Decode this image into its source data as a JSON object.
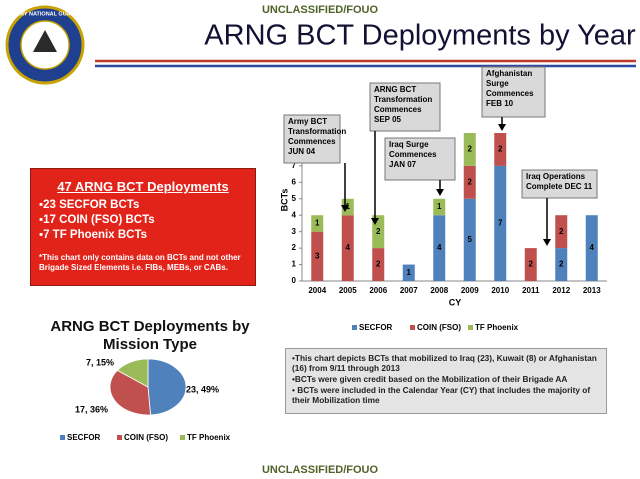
{
  "header": {
    "classification": "UNCLASSIFIED/FOUO",
    "title": "ARNG BCT Deployments by Year",
    "logo_text": "ARMY NATIONAL GUARD"
  },
  "summary": {
    "heading": "47 ARNG BCT Deployments",
    "items": [
      "▪23 SECFOR BCTs",
      "▪17 COIN (FSO) BCTs",
      "▪7 TF Phoenix BCTs"
    ],
    "note": "*This chart only contains data on BCTs and not other Brigade Sized Elements i.e. FIBs, MEBs, or CABs."
  },
  "chart_data": [
    {
      "type": "stacked_bar",
      "y_label": "BCTs",
      "x_label": "CY",
      "categories": [
        "2004",
        "2005",
        "2006",
        "2007",
        "2008",
        "2009",
        "2010",
        "2011",
        "2012",
        "2013"
      ],
      "series": [
        {
          "name": "SECFOR",
          "color": "#4f81bd",
          "values": [
            0,
            0,
            0,
            1,
            4,
            5,
            7,
            0,
            2,
            4
          ]
        },
        {
          "name": "COIN (FSO)",
          "color": "#c0504d",
          "values": [
            3,
            4,
            2,
            0,
            0,
            2,
            2,
            2,
            2,
            0
          ]
        },
        {
          "name": "TF Phoenix",
          "color": "#9bbb59",
          "values": [
            1,
            1,
            2,
            0,
            1,
            2,
            0,
            0,
            0,
            0
          ]
        }
      ],
      "ylim": [
        0,
        9
      ],
      "yticks": [
        0,
        1,
        2,
        3,
        4,
        5,
        6,
        7,
        8,
        9
      ],
      "annotations": [
        [
          "Army BCT",
          "Transformation",
          "Commences",
          "JUN 04"
        ],
        [
          "ARNG BCT",
          "Transformation",
          "Commences",
          "SEP 05"
        ],
        [
          "Iraq Surge",
          "Commences",
          "JAN 07"
        ],
        [
          "Afghanistan",
          "Surge",
          "Commences",
          "FEB 10"
        ],
        [
          "Iraq Operations",
          "Complete DEC 11"
        ]
      ]
    },
    {
      "type": "pie",
      "title": "ARNG BCT Deployments by Mission Type",
      "categories": [
        "SECFOR",
        "COIN (FSO)",
        "TF Phoenix"
      ],
      "values": [
        23,
        17,
        7
      ],
      "value_labels": [
        "23, 49%",
        "17, 36%",
        "7, 15%"
      ],
      "colors": [
        "#4f81bd",
        "#c0504d",
        "#9bbb59"
      ]
    }
  ],
  "notes": [
    "•This chart depicts BCTs that mobilized to Iraq (23), Kuwait (8) or Afghanistan (16) from 9/11 through 2013",
    "•BCTs were given credit based on the Mobilization of their Brigade AA",
    "• BCTs were included in the Calendar Year (CY) that includes the majority of their Mobilization time"
  ],
  "footer": "UNCLASSIFIED/FOUO"
}
